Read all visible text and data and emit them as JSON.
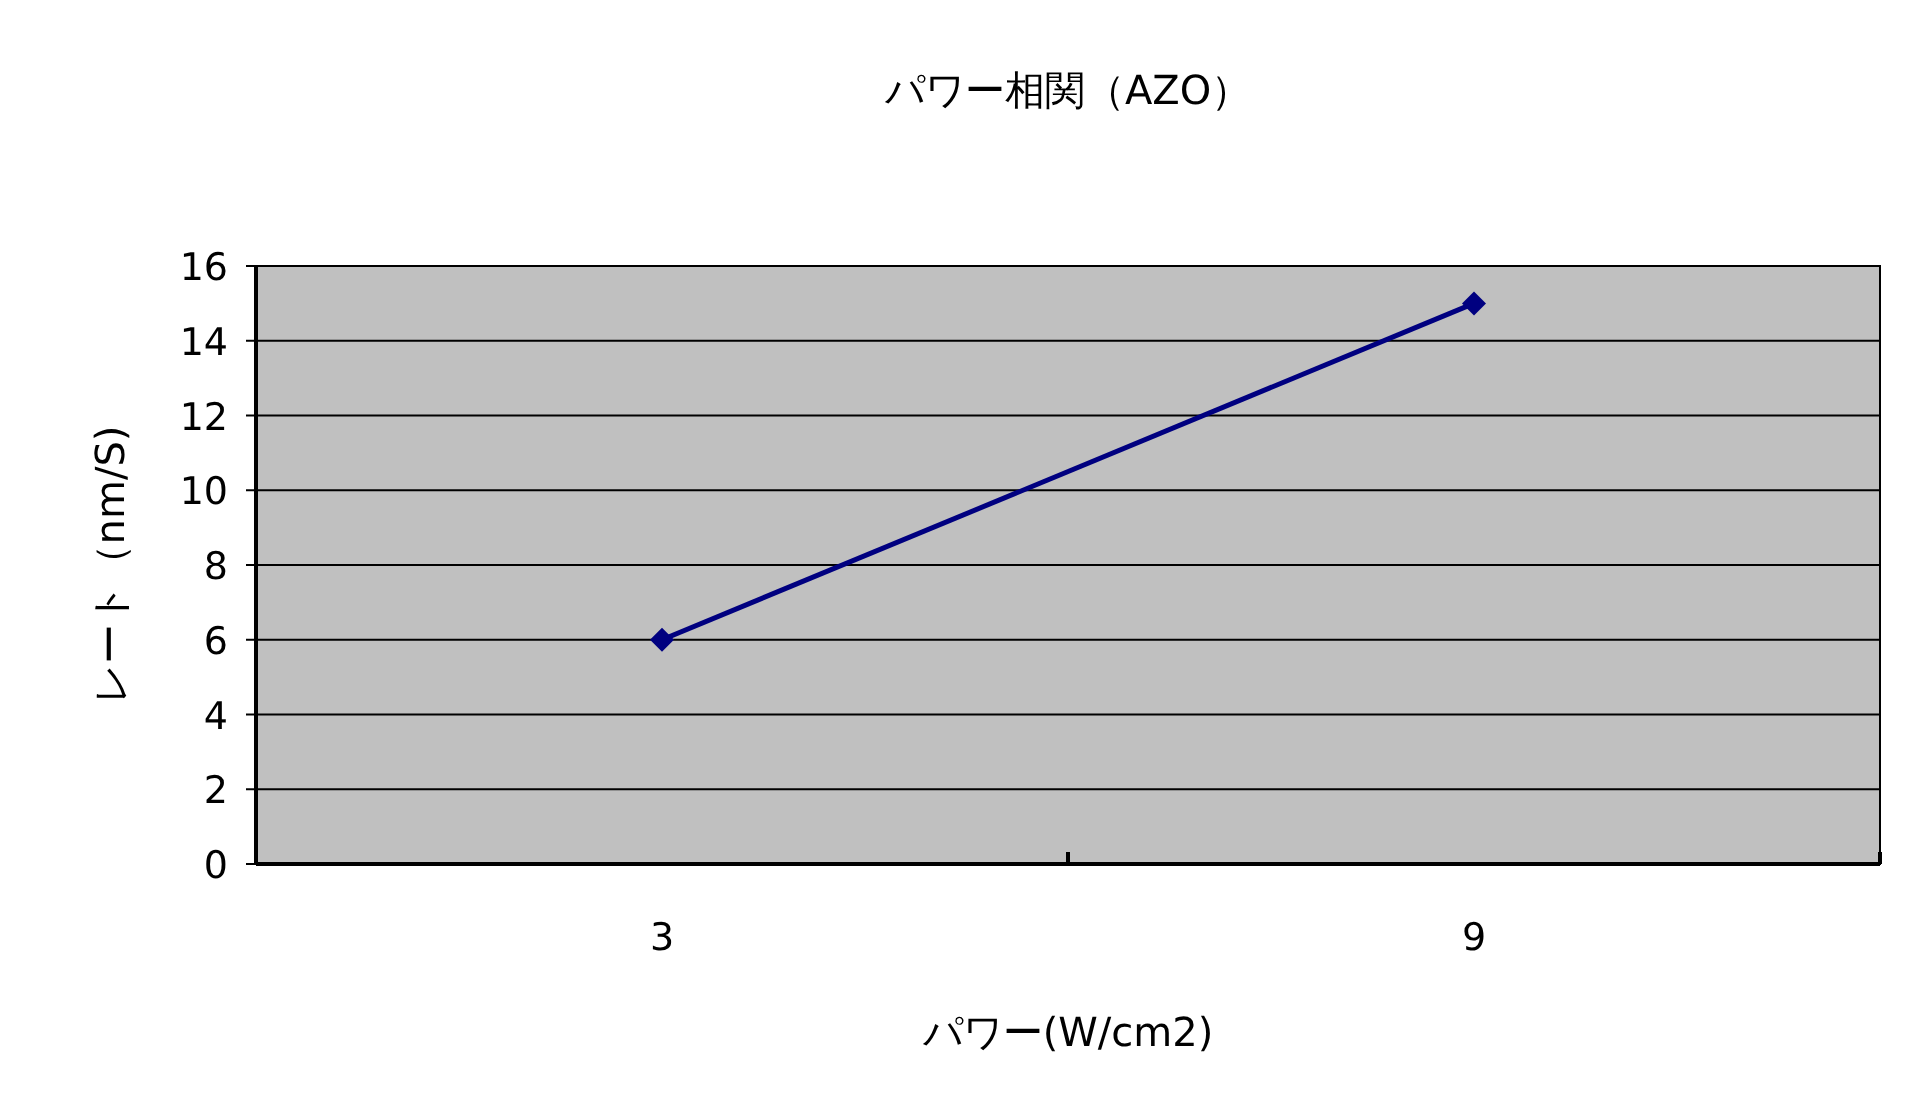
{
  "chart_data": {
    "type": "line",
    "title": "パワー相関（AZO）",
    "xlabel": "パワー(W/cm2)",
    "ylabel": "レート（nm/S)",
    "categories": [
      "3",
      "9"
    ],
    "series": [
      {
        "color": "#000080",
        "values": [
          6,
          15
        ]
      }
    ],
    "ylim": [
      0,
      16
    ],
    "yticks": [
      0,
      2,
      4,
      6,
      8,
      10,
      12,
      14,
      16
    ],
    "grid": "y",
    "marker": "diamond",
    "line_style": "solid"
  }
}
